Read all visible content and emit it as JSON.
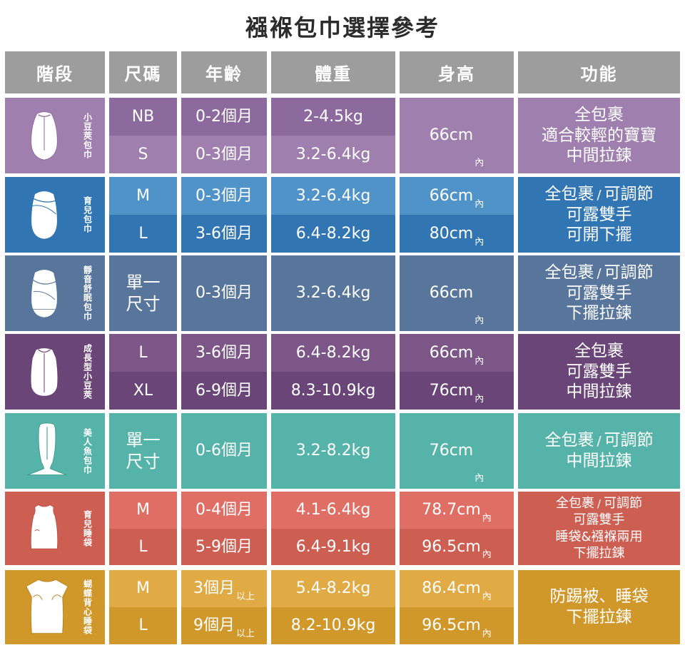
{
  "title": "襁褓包巾選擇參考",
  "headers": [
    "階段",
    "尺碼",
    "年齡",
    "體重",
    "身高",
    "功能"
  ],
  "colors": {
    "header": "#9d9d9d",
    "purple_light": "#9f7fae",
    "purple_dark": "#8d6a9d",
    "blue_light": "#4f93c9",
    "blue_dark": "#3175b2",
    "slate": "#58769b",
    "violet_light": "#7b5687",
    "violet_dark": "#6a4577",
    "teal": "#55b3a9",
    "coral_light": "#df6e64",
    "coral_dark": "#cd5e52",
    "gold_light": "#e0ab45",
    "gold_dark": "#d0982a"
  },
  "sections": [
    {
      "stage": "小豆莢包巾",
      "icon": "sleep-pod-icon",
      "rows": [
        {
          "size": "NB",
          "age": "0-2個月",
          "age_suffix": "",
          "weight": "2-4.5kg",
          "height": ""
        },
        {
          "size": "S",
          "age": "0-3個月",
          "age_suffix": "",
          "weight": "3.2-6.4kg",
          "height": ""
        }
      ],
      "height_merged": "66cm",
      "height_suffix": "內",
      "function": [
        "全包裹",
        "適合較輕的寶寶",
        "中間拉鍊"
      ]
    },
    {
      "stage": "育兒包巾",
      "icon": "swaddle-icon",
      "rows": [
        {
          "size": "M",
          "age": "0-3個月",
          "age_suffix": "",
          "weight": "3.2-6.4kg",
          "height": "66cm",
          "height_suffix": "內"
        },
        {
          "size": "L",
          "age": "3-6個月",
          "age_suffix": "",
          "weight": "6.4-8.2kg",
          "height": "80cm",
          "height_suffix": "內"
        }
      ],
      "function_first": [
        "全包裹",
        "可調節"
      ],
      "function": [
        "可露雙手",
        "可開下擺"
      ]
    },
    {
      "stage": "靜音舒眠包巾",
      "icon": "quiet-swaddle-icon",
      "size": [
        "單一",
        "尺寸"
      ],
      "age": "0-3個月",
      "weight": "3.2-6.4kg",
      "height": "66cm",
      "height_suffix": "內",
      "function_first": [
        "全包裹",
        "可調節"
      ],
      "function": [
        "可露雙手",
        "下擺拉鍊"
      ]
    },
    {
      "stage": "成長型小豆莢",
      "icon": "transition-pod-icon",
      "rows": [
        {
          "size": "L",
          "age": "3-6個月",
          "weight": "6.4-8.2kg",
          "height": "66cm",
          "height_suffix": "內"
        },
        {
          "size": "XL",
          "age": "6-9個月",
          "weight": "8.3-10.9kg",
          "height": "76cm",
          "height_suffix": "內"
        }
      ],
      "function": [
        "全包裹",
        "可露雙手",
        "中間拉鍊"
      ]
    },
    {
      "stage": "美人魚包巾",
      "icon": "mermaid-icon",
      "size": [
        "單一",
        "尺寸"
      ],
      "age": "0-6個月",
      "weight": "3.2-8.2kg",
      "height": "76cm",
      "height_suffix": "內",
      "function_first": [
        "全包裹",
        "可調節"
      ],
      "function": [
        "中間拉鍊"
      ]
    },
    {
      "stage": "育兒睡袋",
      "icon": "sleep-sack-icon",
      "rows": [
        {
          "size": "M",
          "age": "0-4個月",
          "weight": "4.1-6.4kg",
          "height": "78.7cm",
          "height_suffix": "內"
        },
        {
          "size": "L",
          "age": "5-9個月",
          "weight": "6.4-9.1kg",
          "height": "96.5cm",
          "height_suffix": "內"
        }
      ],
      "function_first": [
        "全包裹",
        "可調節"
      ],
      "function": [
        "可露雙手",
        "睡袋&襁褓兩用",
        "下擺拉鍊"
      ]
    },
    {
      "stage": "蝴蝶背心睡袋",
      "icon": "butterfly-vest-icon",
      "rows": [
        {
          "size": "M",
          "age": "3個月",
          "age_suffix": "以上",
          "weight": "5.4-8.2kg",
          "height": "86.4cm",
          "height_suffix": "內"
        },
        {
          "size": "L",
          "age": "9個月",
          "age_suffix": "以上",
          "weight": "8.2-10.9kg",
          "height": "96.5cm",
          "height_suffix": "內"
        }
      ],
      "function": [
        "防踢被、睡袋",
        "下擺拉鍊"
      ]
    }
  ]
}
